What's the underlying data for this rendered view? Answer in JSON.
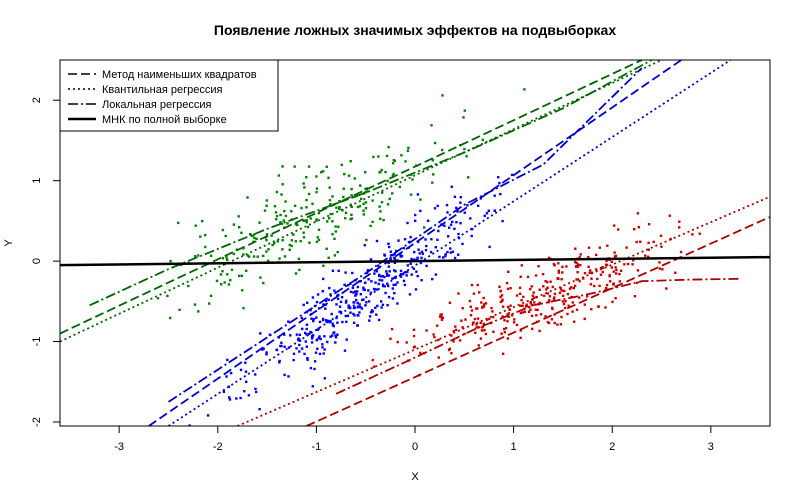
{
  "chart_data": {
    "type": "scatter",
    "title": "Появление ложных значимых эффектов на подвыборках",
    "xlabel": "X",
    "ylabel": "Y",
    "xlim": [
      -3.6,
      3.6
    ],
    "ylim": [
      -2.05,
      2.5
    ],
    "x_ticks": [
      -3,
      -2,
      -1,
      0,
      1,
      2,
      3
    ],
    "y_ticks": [
      -2,
      -1,
      0,
      1,
      2
    ],
    "x_tick_labels": [
      "-3",
      "-2",
      "-1",
      "0",
      "1",
      "2",
      "3"
    ],
    "y_tick_labels": [
      "-2",
      "-1",
      "0",
      "1",
      "2"
    ],
    "grid": false,
    "legend_position": "top-left",
    "legend": [
      {
        "label": "Метод наименьших квадратов",
        "style": "dashed"
      },
      {
        "label": "Квантильная регрессия",
        "style": "dotted"
      },
      {
        "label": "Локальная регрессия",
        "style": "dashdot"
      },
      {
        "label": "МНК по полной выборке",
        "style": "solid-thick"
      }
    ],
    "colors": {
      "upper": "#008000",
      "middle": "#0000ff",
      "lower": "#cc0000",
      "full": "#000000"
    },
    "point_groups": [
      {
        "group": "upper",
        "color": "#008000",
        "n": 260,
        "x_range": [
          -3.4,
          1.3
        ],
        "line": {
          "slope": 0.55,
          "intercept": 1.15
        },
        "spread": 0.75
      },
      {
        "group": "middle",
        "color": "#0000ff",
        "n": 400,
        "x_range": [
          -2.5,
          1.4
        ],
        "line": {
          "slope": 0.9,
          "intercept": 0.05
        },
        "spread": 0.55
      },
      {
        "group": "lower",
        "color": "#cc0000",
        "n": 330,
        "x_range": [
          -0.8,
          3.3
        ],
        "line": {
          "slope": 0.45,
          "intercept": -1.0
        },
        "spread": 0.55
      }
    ],
    "lines": [
      {
        "name": "upper-ols",
        "color": "#006400",
        "style": "dashed",
        "points": [
          [
            -3.6,
            -0.9
          ],
          [
            2.3,
            2.5
          ]
        ]
      },
      {
        "name": "upper-quantile",
        "color": "#006400",
        "style": "dotted",
        "points": [
          [
            -3.6,
            -1.0
          ],
          [
            2.5,
            2.5
          ]
        ]
      },
      {
        "name": "upper-loess",
        "color": "#006400",
        "style": "dashdot",
        "points": [
          [
            -3.3,
            -0.55
          ],
          [
            -2.5,
            -0.1
          ],
          [
            -1.5,
            0.4
          ],
          [
            -0.5,
            0.85
          ],
          [
            0.5,
            1.35
          ],
          [
            1.5,
            1.9
          ],
          [
            2.4,
            2.5
          ]
        ]
      },
      {
        "name": "middle-ols",
        "color": "#0000cc",
        "style": "dashed",
        "points": [
          [
            -2.7,
            -2.05
          ],
          [
            2.7,
            2.5
          ]
        ]
      },
      {
        "name": "middle-quantile",
        "color": "#0000cc",
        "style": "dotted",
        "points": [
          [
            -2.5,
            -2.05
          ],
          [
            3.2,
            2.5
          ]
        ]
      },
      {
        "name": "middle-loess",
        "color": "#0000cc",
        "style": "dashdot",
        "points": [
          [
            -2.5,
            -1.75
          ],
          [
            -1.5,
            -0.95
          ],
          [
            -0.5,
            -0.15
          ],
          [
            0.5,
            0.7
          ],
          [
            1.3,
            1.2
          ],
          [
            2.3,
            2.4
          ]
        ]
      },
      {
        "name": "lower-ols",
        "color": "#aa0000",
        "style": "dashed",
        "points": [
          [
            -1.1,
            -2.05
          ],
          [
            3.6,
            0.55
          ]
        ]
      },
      {
        "name": "lower-quantile",
        "color": "#aa0000",
        "style": "dotted",
        "points": [
          [
            -1.8,
            -2.05
          ],
          [
            3.6,
            0.8
          ]
        ]
      },
      {
        "name": "lower-loess",
        "color": "#aa0000",
        "style": "dashdot",
        "points": [
          [
            -0.8,
            -1.65
          ],
          [
            0.0,
            -1.2
          ],
          [
            0.6,
            -0.85
          ],
          [
            1.2,
            -0.55
          ],
          [
            1.8,
            -0.4
          ],
          [
            2.3,
            -0.25
          ],
          [
            2.8,
            -0.23
          ],
          [
            3.3,
            -0.22
          ]
        ]
      },
      {
        "name": "full-ols",
        "color": "#000000",
        "style": "solid-thick",
        "points": [
          [
            -3.6,
            -0.05
          ],
          [
            3.6,
            0.05
          ]
        ]
      }
    ]
  }
}
